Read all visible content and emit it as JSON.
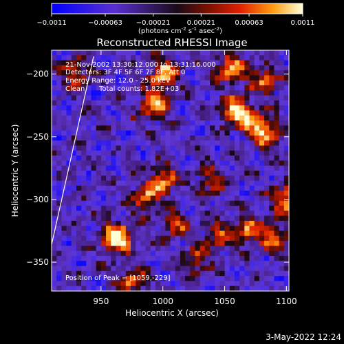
{
  "chart_data": {
    "type": "heatmap",
    "title": "Reconstructed RHESSI Image",
    "xlabel": "Heliocentric X (arcsec)",
    "ylabel": "Heliocentric Y (arcsec)",
    "xlim": [
      910,
      1102
    ],
    "ylim": [
      -373,
      -181
    ],
    "x_ticks": [
      950,
      1000,
      1050,
      1100
    ],
    "y_ticks": [
      -200,
      -250,
      -300,
      -350
    ],
    "colorbar": {
      "range": [
        -0.0011,
        0.0011
      ],
      "tick_values": [
        -0.0011,
        -0.00063,
        -0.00021,
        0.00021,
        0.00063,
        0.0011
      ],
      "tick_labels": [
        "-0.0011",
        "-0.00063",
        "-0.00021",
        "0.00021",
        "0.00063",
        "0.0011"
      ],
      "unit_label": [
        "(photons cm",
        "-2",
        " s",
        "-1",
        " asec",
        "-2",
        ")"
      ]
    },
    "annotations": {
      "time_range": "21-Nov-2002 13:30:12.000 to 13:31:16.000",
      "detectors": "Detectors: 3F 4F 5F 6F 7F 8F, Att 0",
      "energy_range": "Energy Range: 12.0 - 25.0 keV",
      "clean": "Clean",
      "total_counts": "Total counts: 1.82E+03",
      "peak_position": "Position of Peak = [1059,-229]"
    },
    "limb_line": [
      [
        910,
        -336
      ],
      [
        944,
        -186
      ]
    ],
    "sources": [
      {
        "x": 1059,
        "y": -229,
        "value": 0.00105
      },
      {
        "x": 1055,
        "y": -195,
        "value": 0.0009
      },
      {
        "x": 1000,
        "y": -200,
        "value": 0.0009
      },
      {
        "x": 993,
        "y": -225,
        "value": 0.0008
      },
      {
        "x": 1100,
        "y": -300,
        "value": 0.0009
      },
      {
        "x": 1075,
        "y": -240,
        "value": 0.00075
      },
      {
        "x": 1088,
        "y": -250,
        "value": 0.0006
      },
      {
        "x": 1082,
        "y": -205,
        "value": 0.0006
      },
      {
        "x": 1068,
        "y": -325,
        "value": 0.0006
      },
      {
        "x": 1000,
        "y": -285,
        "value": 0.0008
      },
      {
        "x": 985,
        "y": -300,
        "value": 0.0006
      },
      {
        "x": 965,
        "y": -332,
        "value": 0.0006
      },
      {
        "x": 975,
        "y": -365,
        "value": 0.0006
      },
      {
        "x": 1045,
        "y": -330,
        "value": 0.0005
      },
      {
        "x": 1090,
        "y": -330,
        "value": 0.0005
      },
      {
        "x": 930,
        "y": -200,
        "value": 0.0005
      },
      {
        "x": 960,
        "y": -330,
        "value": 0.0005
      },
      {
        "x": 1040,
        "y": -285,
        "value": 0.0004
      },
      {
        "x": 1025,
        "y": -350,
        "value": 0.0004
      },
      {
        "x": 1010,
        "y": -320,
        "value": 0.00035
      }
    ]
  },
  "footer": {
    "date": "3-May-2022 12:24"
  }
}
